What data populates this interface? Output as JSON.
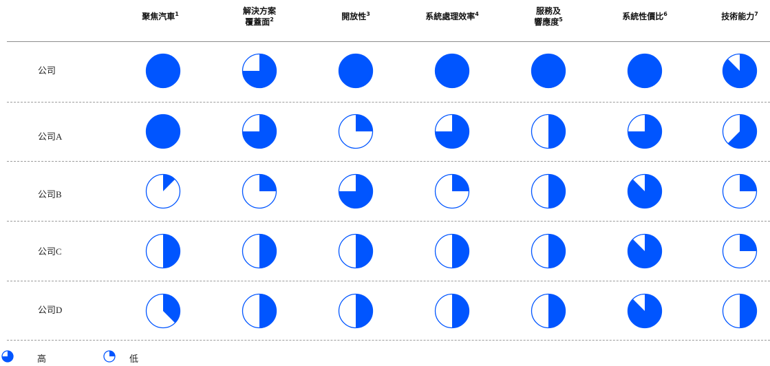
{
  "chart_data": {
    "type": "table",
    "columns": [
      {
        "label": "聚焦汽車",
        "note": "1"
      },
      {
        "label": "解決方案\n覆蓋面",
        "note": "2"
      },
      {
        "label": "開放性",
        "note": "3"
      },
      {
        "label": "系統處理效率",
        "note": "4"
      },
      {
        "label": "服務及\n響應度",
        "note": "5"
      },
      {
        "label": "系統性價比",
        "note": "6"
      },
      {
        "label": "技術能力",
        "note": "7"
      }
    ],
    "rows": [
      {
        "label": "公司",
        "values": [
          1.0,
          0.75,
          1.0,
          1.0,
          1.0,
          1.0,
          0.875
        ]
      },
      {
        "label": "公司A",
        "values": [
          1.0,
          0.75,
          0.25,
          0.75,
          0.5,
          0.75,
          0.625
        ]
      },
      {
        "label": "公司B",
        "values": [
          0.125,
          0.25,
          0.75,
          0.25,
          0.5,
          0.875,
          0.25
        ]
      },
      {
        "label": "公司C",
        "values": [
          0.5,
          0.5,
          0.5,
          0.5,
          0.5,
          0.875,
          0.25
        ]
      },
      {
        "label": "公司D",
        "values": [
          0.375,
          0.5,
          0.5,
          0.5,
          0.5,
          0.875,
          0.5
        ]
      }
    ],
    "legend": [
      {
        "label": "高",
        "value": 0.75
      },
      {
        "label": "低",
        "value": 0.25
      }
    ],
    "colors": {
      "fill": "#0055ff",
      "outline": "#0055ff",
      "empty": "#ffffff"
    }
  }
}
